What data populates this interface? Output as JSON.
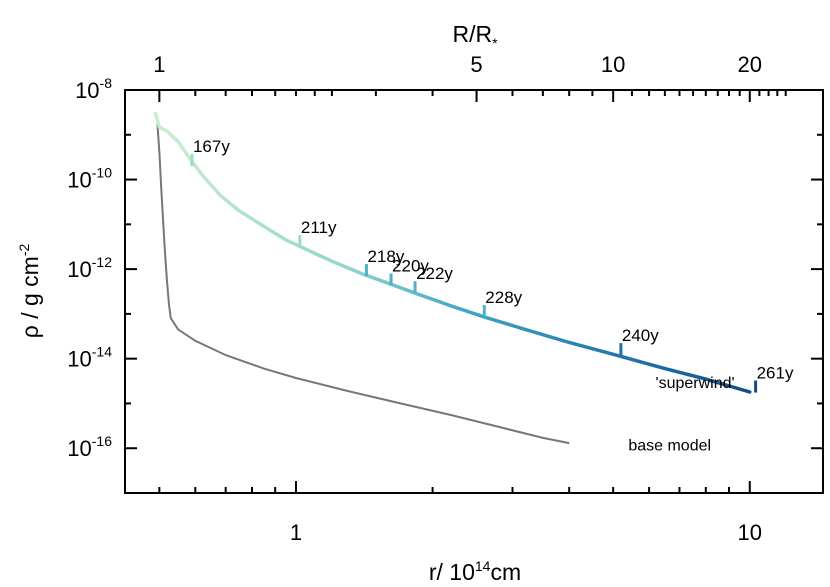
{
  "chart_data": {
    "type": "line",
    "x_scale": "log",
    "y_scale": "log",
    "xlabel": {
      "base": "r/ 10",
      "exp": "14",
      "unit": "cm"
    },
    "ylabel": {
      "main": "ρ / g cm",
      "exp": "-2"
    },
    "top_axis_label": {
      "base": "R/R",
      "sub": "*"
    },
    "xlim": [
      0.42,
      14.5
    ],
    "ylim": [
      0.001,
      1e-08
    ],
    "x_ticks": [
      {
        "x": 1,
        "label": "1"
      },
      {
        "x": 10,
        "label": "10"
      }
    ],
    "y_ticks": [
      {
        "y": 1e-08,
        "base": "10",
        "exp": "-8"
      },
      {
        "y": 1e-10,
        "base": "10",
        "exp": "-10"
      },
      {
        "y": 1e-12,
        "base": "10",
        "exp": "-12"
      },
      {
        "y": 1e-14,
        "base": "10",
        "exp": "-14"
      },
      {
        "y": 1e-16,
        "base": "10",
        "exp": "-16"
      }
    ],
    "top_ticks": [
      {
        "x": 0.5,
        "label": "1"
      },
      {
        "x": 2.5,
        "label": "5"
      },
      {
        "x": 5.0,
        "label": "10"
      },
      {
        "x": 10.0,
        "label": "20"
      }
    ],
    "series": [
      {
        "name": "'superwind'",
        "color": "#3a9cc6",
        "x": [
          0.49,
          0.5,
          0.52,
          0.55,
          0.58,
          0.62,
          0.68,
          0.75,
          0.85,
          0.95,
          1.05,
          1.2,
          1.4,
          1.6,
          1.85,
          2.2,
          2.6,
          3.2,
          4.0,
          5.0,
          6.5,
          8.0,
          10.0
        ],
        "y": [
          3e-09,
          1.5e-09,
          1.2e-09,
          7e-10,
          3.2e-10,
          1.3e-10,
          4.5e-11,
          2e-11,
          9e-12,
          4.5e-12,
          2.8e-12,
          1.5e-12,
          7.8e-13,
          4.8e-13,
          2.8e-13,
          1.5e-13,
          8.5e-14,
          4.5e-14,
          2.3e-14,
          1.25e-14,
          6e-15,
          3.5e-15,
          1.8e-15
        ]
      },
      {
        "name": "base model",
        "color": "#777777",
        "x": [
          0.495,
          0.5,
          0.505,
          0.51,
          0.515,
          0.52,
          0.525,
          0.53,
          0.55,
          0.6,
          0.7,
          0.85,
          1.0,
          1.3,
          1.7,
          2.2,
          2.8,
          3.5,
          4.0
        ],
        "y": [
          1.8e-09,
          4e-10,
          6e-11,
          1e-11,
          2e-12,
          5e-13,
          1.6e-13,
          8e-14,
          4.5e-14,
          2.5e-14,
          1.2e-14,
          6e-15,
          3.7e-15,
          1.9e-15,
          1e-15,
          5.5e-16,
          3e-16,
          1.7e-16,
          1.3e-16
        ]
      }
    ],
    "markers": [
      {
        "x": 0.59,
        "y": 2e-10,
        "label": "167y"
      },
      {
        "x": 1.02,
        "y": 3.1e-12,
        "label": "211y"
      },
      {
        "x": 1.43,
        "y": 7e-13,
        "label": "218y"
      },
      {
        "x": 1.62,
        "y": 4.3e-13,
        "label": "220y"
      },
      {
        "x": 1.83,
        "y": 2.9e-13,
        "label": "222y"
      },
      {
        "x": 2.6,
        "y": 8.5e-14,
        "label": "228y"
      },
      {
        "x": 5.2,
        "y": 1.2e-14,
        "label": "240y"
      },
      {
        "x": 10.3,
        "y": 1.75e-15,
        "label": "261y"
      }
    ],
    "annotations": [
      {
        "text": "'superwind'",
        "x": 6.2,
        "y": 2.2e-15,
        "color": "#3a9cc6"
      },
      {
        "text": "base model",
        "x": 5.4,
        "y": 9e-17,
        "color": "#777777"
      }
    ]
  }
}
